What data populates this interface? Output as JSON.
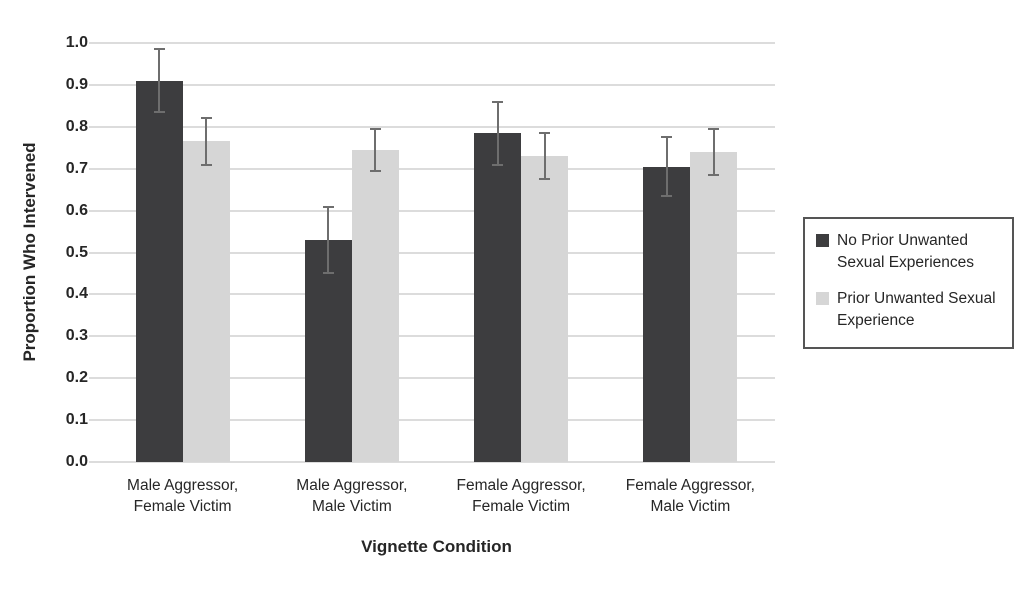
{
  "figure": {
    "background": "#ffffff",
    "text_color": "#262626"
  },
  "chart_data": {
    "type": "bar",
    "title": "",
    "xlabel": "Vignette Condition",
    "ylabel": "Proportion Who Intervened",
    "ylim": [
      0.0,
      1.0
    ],
    "ytick_step": 0.1,
    "ytick_labels": [
      "0.0",
      "0.1",
      "0.2",
      "0.3",
      "0.4",
      "0.5",
      "0.6",
      "0.7",
      "0.8",
      "0.9",
      "1.0"
    ],
    "grid": true,
    "legend_position": "right-outside",
    "categories": [
      "Male Aggressor, Female Victim",
      "Male Aggressor, Male Victim",
      "Female Aggressor, Female Victim",
      "Female Aggressor, Male Victim"
    ],
    "series": [
      {
        "name": "No Prior Unwanted Sexual Experiences",
        "color": "#3d3d3f",
        "values": [
          0.91,
          0.53,
          0.785,
          0.705
        ],
        "error_bars": [
          0.075,
          0.078,
          0.075,
          0.071
        ]
      },
      {
        "name": "Prior Unwanted Sexual Experience",
        "color": "#d6d6d6",
        "values": [
          0.765,
          0.745,
          0.73,
          0.74
        ],
        "error_bars": [
          0.055,
          0.05,
          0.055,
          0.055
        ]
      }
    ],
    "error_bar_color": "#6e6e6e",
    "gridline_color": "#dcdcdc"
  },
  "legend": {
    "items": [
      {
        "label": "No Prior Unwanted\nSexual Experiences",
        "color": "#3d3d3f"
      },
      {
        "label": "Prior Unwanted Sexual\nExperience",
        "color": "#d6d6d6"
      }
    ]
  }
}
